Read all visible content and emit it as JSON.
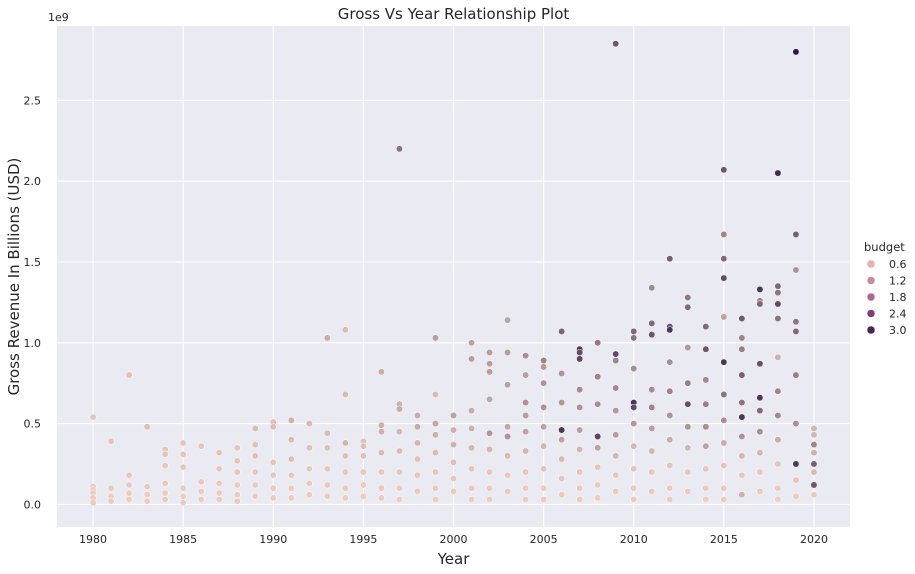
{
  "chart_data": {
    "type": "scatter",
    "title": "Gross Vs Year Relationship Plot",
    "xlabel": "Year",
    "ylabel": "Gross Revenue In Billions (USD)",
    "y_offset_label": "1e9",
    "xlim": [
      1978,
      2022
    ],
    "ylim": [
      -0.14,
      2.96
    ],
    "x_ticks": [
      1980,
      1985,
      1990,
      1995,
      2000,
      2005,
      2010,
      2015,
      2020
    ],
    "y_ticks": [
      0.0,
      0.5,
      1.0,
      1.5,
      2.0,
      2.5
    ],
    "y_tick_labels": [
      "0.0",
      "0.5",
      "1.0",
      "1.5",
      "2.0",
      "2.5"
    ],
    "grid": true,
    "legend": {
      "title": "budget",
      "placement": "right",
      "entries": [
        {
          "label": "0.6",
          "color": "#e8b0aa"
        },
        {
          "label": "1.2",
          "color": "#cc8a9c"
        },
        {
          "label": "1.8",
          "color": "#ad6791"
        },
        {
          "label": "2.4",
          "color": "#7f4080"
        },
        {
          "label": "3.0",
          "color": "#4d2256"
        }
      ]
    },
    "hue_scale": {
      "min_color": "#f0cfc0",
      "max_color": "#2d1a42",
      "domain": [
        0,
        3.56
      ]
    },
    "points": [
      [
        1980,
        0.54,
        0.2
      ],
      [
        1980,
        0.11,
        0.1
      ],
      [
        1980,
        0.09,
        0.1
      ],
      [
        1980,
        0.07,
        0.05
      ],
      [
        1980,
        0.04,
        0.05
      ],
      [
        1980,
        0.01,
        0.05
      ],
      [
        1981,
        0.39,
        0.2
      ],
      [
        1981,
        0.1,
        0.1
      ],
      [
        1981,
        0.05,
        0.05
      ],
      [
        1981,
        0.02,
        0.05
      ],
      [
        1982,
        0.8,
        0.3
      ],
      [
        1982,
        0.18,
        0.15
      ],
      [
        1982,
        0.12,
        0.1
      ],
      [
        1982,
        0.07,
        0.05
      ],
      [
        1982,
        0.03,
        0.05
      ],
      [
        1983,
        0.48,
        0.3
      ],
      [
        1983,
        0.11,
        0.1
      ],
      [
        1983,
        0.06,
        0.05
      ],
      [
        1983,
        0.02,
        0.05
      ],
      [
        1984,
        0.34,
        0.2
      ],
      [
        1984,
        0.31,
        0.2
      ],
      [
        1984,
        0.24,
        0.15
      ],
      [
        1984,
        0.13,
        0.1
      ],
      [
        1984,
        0.07,
        0.05
      ],
      [
        1984,
        0.03,
        0.05
      ],
      [
        1985,
        0.38,
        0.2
      ],
      [
        1985,
        0.31,
        0.2
      ],
      [
        1985,
        0.23,
        0.15
      ],
      [
        1985,
        0.1,
        0.1
      ],
      [
        1985,
        0.05,
        0.05
      ],
      [
        1985,
        0.01,
        0.05
      ],
      [
        1986,
        0.36,
        0.2
      ],
      [
        1986,
        0.14,
        0.1
      ],
      [
        1986,
        0.08,
        0.05
      ],
      [
        1986,
        0.03,
        0.05
      ],
      [
        1987,
        0.32,
        0.2
      ],
      [
        1987,
        0.22,
        0.15
      ],
      [
        1987,
        0.13,
        0.1
      ],
      [
        1987,
        0.07,
        0.05
      ],
      [
        1987,
        0.03,
        0.05
      ],
      [
        1988,
        0.35,
        0.2
      ],
      [
        1988,
        0.27,
        0.2
      ],
      [
        1988,
        0.2,
        0.15
      ],
      [
        1988,
        0.12,
        0.1
      ],
      [
        1988,
        0.06,
        0.05
      ],
      [
        1988,
        0.02,
        0.05
      ],
      [
        1989,
        0.47,
        0.4
      ],
      [
        1989,
        0.37,
        0.3
      ],
      [
        1989,
        0.3,
        0.3
      ],
      [
        1989,
        0.2,
        0.15
      ],
      [
        1989,
        0.12,
        0.1
      ],
      [
        1989,
        0.05,
        0.05
      ],
      [
        1990,
        0.51,
        0.3
      ],
      [
        1990,
        0.48,
        0.3
      ],
      [
        1990,
        0.26,
        0.2
      ],
      [
        1990,
        0.18,
        0.15
      ],
      [
        1990,
        0.1,
        0.1
      ],
      [
        1990,
        0.04,
        0.05
      ],
      [
        1991,
        0.52,
        0.6
      ],
      [
        1991,
        0.4,
        0.4
      ],
      [
        1991,
        0.28,
        0.3
      ],
      [
        1991,
        0.18,
        0.15
      ],
      [
        1991,
        0.1,
        0.1
      ],
      [
        1991,
        0.04,
        0.05
      ],
      [
        1992,
        0.5,
        0.4
      ],
      [
        1992,
        0.35,
        0.3
      ],
      [
        1992,
        0.22,
        0.15
      ],
      [
        1992,
        0.13,
        0.1
      ],
      [
        1992,
        0.06,
        0.05
      ],
      [
        1993,
        1.03,
        0.7
      ],
      [
        1993,
        0.44,
        0.4
      ],
      [
        1993,
        0.35,
        0.3
      ],
      [
        1993,
        0.22,
        0.15
      ],
      [
        1993,
        0.12,
        0.1
      ],
      [
        1993,
        0.05,
        0.05
      ],
      [
        1994,
        1.08,
        0.4
      ],
      [
        1994,
        0.68,
        0.4
      ],
      [
        1994,
        0.38,
        0.5
      ],
      [
        1994,
        0.3,
        0.3
      ],
      [
        1994,
        0.2,
        0.15
      ],
      [
        1994,
        0.1,
        0.1
      ],
      [
        1994,
        0.04,
        0.05
      ],
      [
        1995,
        0.39,
        0.3
      ],
      [
        1995,
        0.36,
        0.3
      ],
      [
        1995,
        0.3,
        0.3
      ],
      [
        1995,
        0.2,
        0.15
      ],
      [
        1995,
        0.12,
        0.1
      ],
      [
        1995,
        0.05,
        0.05
      ],
      [
        1996,
        0.82,
        0.7
      ],
      [
        1996,
        0.49,
        0.6
      ],
      [
        1996,
        0.45,
        0.6
      ],
      [
        1996,
        0.32,
        0.4
      ],
      [
        1996,
        0.2,
        0.15
      ],
      [
        1996,
        0.1,
        0.1
      ],
      [
        1996,
        0.04,
        0.05
      ],
      [
        1997,
        2.2,
        1.8
      ],
      [
        1997,
        0.62,
        0.6
      ],
      [
        1997,
        0.59,
        0.7
      ],
      [
        1997,
        0.45,
        0.5
      ],
      [
        1997,
        0.33,
        0.4
      ],
      [
        1997,
        0.2,
        0.15
      ],
      [
        1997,
        0.1,
        0.1
      ],
      [
        1997,
        0.03,
        0.05
      ],
      [
        1998,
        0.55,
        0.7
      ],
      [
        1998,
        0.48,
        0.7
      ],
      [
        1998,
        0.38,
        0.5
      ],
      [
        1998,
        0.28,
        0.3
      ],
      [
        1998,
        0.18,
        0.15
      ],
      [
        1998,
        0.08,
        0.1
      ],
      [
        1999,
        1.03,
        1.0
      ],
      [
        1999,
        0.68,
        0.4
      ],
      [
        1999,
        0.5,
        0.8
      ],
      [
        1999,
        0.43,
        0.6
      ],
      [
        1999,
        0.32,
        0.4
      ],
      [
        1999,
        0.2,
        0.15
      ],
      [
        1999,
        0.1,
        0.1
      ],
      [
        1999,
        0.03,
        0.05
      ],
      [
        2000,
        0.55,
        0.9
      ],
      [
        2000,
        0.46,
        0.6
      ],
      [
        2000,
        0.37,
        0.6
      ],
      [
        2000,
        0.26,
        0.3
      ],
      [
        2000,
        0.16,
        0.15
      ],
      [
        2000,
        0.08,
        0.1
      ],
      [
        2001,
        1.0,
        0.9
      ],
      [
        2001,
        0.9,
        1.0
      ],
      [
        2001,
        0.58,
        0.7
      ],
      [
        2001,
        0.47,
        0.6
      ],
      [
        2001,
        0.35,
        0.5
      ],
      [
        2001,
        0.22,
        0.2
      ],
      [
        2001,
        0.1,
        0.1
      ],
      [
        2001,
        0.03,
        0.05
      ],
      [
        2002,
        0.94,
        1.0
      ],
      [
        2002,
        0.87,
        1.0
      ],
      [
        2002,
        0.82,
        1.0
      ],
      [
        2002,
        0.65,
        0.8
      ],
      [
        2002,
        0.44,
        1.1
      ],
      [
        2002,
        0.34,
        0.5
      ],
      [
        2002,
        0.2,
        0.15
      ],
      [
        2002,
        0.1,
        0.1
      ],
      [
        2002,
        0.03,
        0.05
      ],
      [
        2003,
        1.14,
        0.9
      ],
      [
        2003,
        0.94,
        1.0
      ],
      [
        2003,
        0.74,
        0.9
      ],
      [
        2003,
        0.48,
        0.8
      ],
      [
        2003,
        0.42,
        1.2
      ],
      [
        2003,
        0.3,
        0.4
      ],
      [
        2003,
        0.18,
        0.15
      ],
      [
        2003,
        0.08,
        0.1
      ],
      [
        2004,
        0.92,
        1.3
      ],
      [
        2004,
        0.8,
        1.0
      ],
      [
        2004,
        0.63,
        1.2
      ],
      [
        2004,
        0.55,
        1.0
      ],
      [
        2004,
        0.45,
        0.9
      ],
      [
        2004,
        0.33,
        0.5
      ],
      [
        2004,
        0.2,
        0.15
      ],
      [
        2004,
        0.1,
        0.1
      ],
      [
        2004,
        0.03,
        0.05
      ],
      [
        2005,
        0.89,
        1.5
      ],
      [
        2005,
        0.85,
        1.1
      ],
      [
        2005,
        0.75,
        1.2
      ],
      [
        2005,
        0.6,
        1.2
      ],
      [
        2005,
        0.48,
        0.9
      ],
      [
        2005,
        0.36,
        0.5
      ],
      [
        2005,
        0.22,
        0.2
      ],
      [
        2005,
        0.1,
        0.1
      ],
      [
        2005,
        0.03,
        0.05
      ],
      [
        2006,
        1.07,
        2.1
      ],
      [
        2006,
        0.81,
        1.2
      ],
      [
        2006,
        0.63,
        1.1
      ],
      [
        2006,
        0.46,
        3.0
      ],
      [
        2006,
        0.4,
        0.9
      ],
      [
        2006,
        0.28,
        0.4
      ],
      [
        2006,
        0.16,
        0.15
      ],
      [
        2006,
        0.06,
        0.1
      ],
      [
        2007,
        0.96,
        3.0
      ],
      [
        2007,
        0.94,
        2.6
      ],
      [
        2007,
        0.9,
        2.7
      ],
      [
        2007,
        0.71,
        1.3
      ],
      [
        2007,
        0.6,
        1.2
      ],
      [
        2007,
        0.46,
        1.0
      ],
      [
        2007,
        0.34,
        0.5
      ],
      [
        2007,
        0.2,
        0.15
      ],
      [
        2007,
        0.1,
        0.1
      ],
      [
        2007,
        0.03,
        0.05
      ],
      [
        2008,
        1.0,
        1.7
      ],
      [
        2008,
        0.79,
        1.5
      ],
      [
        2008,
        0.62,
        1.3
      ],
      [
        2008,
        0.42,
        2.7
      ],
      [
        2008,
        0.35,
        0.9
      ],
      [
        2008,
        0.23,
        0.2
      ],
      [
        2008,
        0.12,
        0.1
      ],
      [
        2008,
        0.04,
        0.05
      ],
      [
        2009,
        2.85,
        2.4
      ],
      [
        2009,
        0.93,
        2.6
      ],
      [
        2009,
        0.89,
        1.5
      ],
      [
        2009,
        0.72,
        1.4
      ],
      [
        2009,
        0.58,
        1.1
      ],
      [
        2009,
        0.43,
        1.0
      ],
      [
        2009,
        0.3,
        0.5
      ],
      [
        2009,
        0.18,
        0.15
      ],
      [
        2009,
        0.08,
        0.1
      ],
      [
        2010,
        1.07,
        2.0
      ],
      [
        2010,
        1.03,
        1.8
      ],
      [
        2010,
        0.84,
        1.3
      ],
      [
        2010,
        0.63,
        3.0
      ],
      [
        2010,
        0.6,
        2.6
      ],
      [
        2010,
        0.5,
        1.1
      ],
      [
        2010,
        0.36,
        0.5
      ],
      [
        2010,
        0.22,
        0.2
      ],
      [
        2010,
        0.1,
        0.1
      ],
      [
        2010,
        0.03,
        0.05
      ],
      [
        2011,
        1.34,
        1.4
      ],
      [
        2011,
        1.12,
        2.0
      ],
      [
        2011,
        1.05,
        2.4
      ],
      [
        2011,
        0.71,
        1.3
      ],
      [
        2011,
        0.6,
        1.5
      ],
      [
        2011,
        0.47,
        1.0
      ],
      [
        2011,
        0.33,
        0.5
      ],
      [
        2011,
        0.2,
        0.15
      ],
      [
        2011,
        0.08,
        0.1
      ],
      [
        2012,
        1.52,
        2.2
      ],
      [
        2012,
        1.1,
        2.4
      ],
      [
        2012,
        1.08,
        3.0
      ],
      [
        2012,
        0.88,
        1.3
      ],
      [
        2012,
        0.7,
        1.5
      ],
      [
        2012,
        0.55,
        1.2
      ],
      [
        2012,
        0.4,
        0.7
      ],
      [
        2012,
        0.24,
        0.2
      ],
      [
        2012,
        0.1,
        0.1
      ],
      [
        2012,
        0.03,
        0.05
      ],
      [
        2013,
        1.28,
        1.7
      ],
      [
        2013,
        1.22,
        2.0
      ],
      [
        2013,
        0.97,
        1.1
      ],
      [
        2013,
        0.75,
        1.6
      ],
      [
        2013,
        0.62,
        2.5
      ],
      [
        2013,
        0.48,
        1.2
      ],
      [
        2013,
        0.35,
        0.5
      ],
      [
        2013,
        0.2,
        0.15
      ],
      [
        2013,
        0.08,
        0.1
      ],
      [
        2014,
        1.1,
        2.0
      ],
      [
        2014,
        0.96,
        2.4
      ],
      [
        2014,
        0.77,
        1.4
      ],
      [
        2014,
        0.62,
        1.6
      ],
      [
        2014,
        0.48,
        1.3
      ],
      [
        2014,
        0.36,
        0.9
      ],
      [
        2014,
        0.22,
        0.2
      ],
      [
        2014,
        0.1,
        0.1
      ],
      [
        2014,
        0.03,
        0.05
      ],
      [
        2015,
        2.07,
        2.4
      ],
      [
        2015,
        1.67,
        1.5
      ],
      [
        2015,
        1.52,
        2.0
      ],
      [
        2015,
        1.4,
        2.6
      ],
      [
        2015,
        1.16,
        0.9
      ],
      [
        2015,
        0.88,
        3.0
      ],
      [
        2015,
        0.68,
        1.8
      ],
      [
        2015,
        0.52,
        1.3
      ],
      [
        2015,
        0.38,
        0.7
      ],
      [
        2015,
        0.24,
        0.2
      ],
      [
        2015,
        0.1,
        0.1
      ],
      [
        2015,
        0.03,
        0.05
      ],
      [
        2016,
        1.15,
        2.3
      ],
      [
        2016,
        1.03,
        1.5
      ],
      [
        2016,
        0.96,
        1.6
      ],
      [
        2016,
        0.8,
        2.2
      ],
      [
        2016,
        0.63,
        1.8
      ],
      [
        2016,
        0.54,
        3.0
      ],
      [
        2016,
        0.42,
        1.2
      ],
      [
        2016,
        0.3,
        0.5
      ],
      [
        2016,
        0.18,
        0.15
      ],
      [
        2016,
        0.06,
        0.6
      ],
      [
        2017,
        1.33,
        3.0
      ],
      [
        2017,
        1.26,
        1.4
      ],
      [
        2017,
        1.24,
        2.1
      ],
      [
        2017,
        0.87,
        2.5
      ],
      [
        2017,
        0.66,
        3.0
      ],
      [
        2017,
        0.58,
        2.0
      ],
      [
        2017,
        0.45,
        1.3
      ],
      [
        2017,
        0.32,
        0.5
      ],
      [
        2017,
        0.2,
        0.15
      ],
      [
        2017,
        0.08,
        0.1
      ],
      [
        2018,
        2.05,
        3.2
      ],
      [
        2018,
        1.35,
        2.0
      ],
      [
        2018,
        1.31,
        1.8
      ],
      [
        2018,
        1.24,
        2.6
      ],
      [
        2018,
        1.15,
        1.8
      ],
      [
        2018,
        0.91,
        0.6
      ],
      [
        2018,
        0.7,
        1.5
      ],
      [
        2018,
        0.55,
        1.4
      ],
      [
        2018,
        0.4,
        0.7
      ],
      [
        2018,
        0.25,
        0.2
      ],
      [
        2018,
        0.1,
        0.1
      ],
      [
        2018,
        0.03,
        0.05
      ],
      [
        2019,
        2.8,
        3.6
      ],
      [
        2019,
        1.67,
        2.2
      ],
      [
        2019,
        1.45,
        1.2
      ],
      [
        2019,
        1.13,
        1.8
      ],
      [
        2019,
        1.07,
        2.0
      ],
      [
        2019,
        0.8,
        1.6
      ],
      [
        2019,
        0.5,
        1.3
      ],
      [
        2019,
        0.25,
        3.0
      ],
      [
        2019,
        0.15,
        0.2
      ],
      [
        2019,
        0.05,
        0.1
      ],
      [
        2020,
        0.47,
        0.5
      ],
      [
        2020,
        0.43,
        0.5
      ],
      [
        2020,
        0.37,
        1.5
      ],
      [
        2020,
        0.32,
        0.6
      ],
      [
        2020,
        0.25,
        2.2
      ],
      [
        2020,
        0.2,
        0.4
      ],
      [
        2020,
        0.12,
        2.4
      ],
      [
        2020,
        0.06,
        0.1
      ]
    ]
  }
}
